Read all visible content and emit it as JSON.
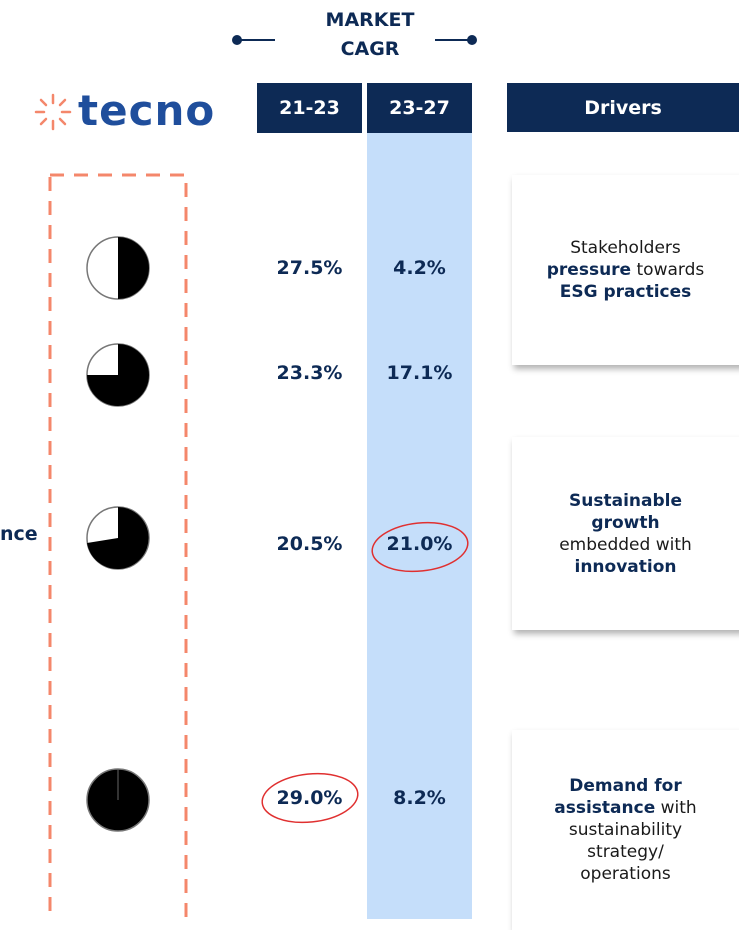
{
  "header": {
    "market_label": [
      "MARKET",
      "CAGR"
    ],
    "columns": [
      "21-23",
      "23-27"
    ],
    "drivers_label": "Drivers",
    "logo": "tecno"
  },
  "side_label": "nce",
  "rows": [
    {
      "cagr_21_23": "27.5%",
      "cagr_23_27": "4.2%"
    },
    {
      "cagr_21_23": "23.3%",
      "cagr_23_27": "17.1%"
    },
    {
      "cagr_21_23": "20.5%",
      "cagr_23_27": "21.0%"
    },
    {
      "cagr_21_23": "29.0%",
      "cagr_23_27": "8.2%"
    }
  ],
  "drivers": [
    {
      "lines": [
        [
          {
            "text": "Stakeholders",
            "bold": false
          }
        ],
        [
          {
            "text": "pressure",
            "bold": true
          },
          {
            "text": " towards",
            "bold": false
          }
        ],
        [
          {
            "text": "ESG practices",
            "bold": true
          }
        ]
      ]
    },
    {
      "lines": [
        [
          {
            "text": "Sustainable",
            "bold": true
          }
        ],
        [
          {
            "text": "growth",
            "bold": true
          }
        ],
        [
          {
            "text": "embedded with",
            "bold": false
          }
        ],
        [
          {
            "text": "innovation",
            "bold": true
          }
        ]
      ]
    },
    {
      "lines": [
        [
          {
            "text": "Demand for",
            "bold": true
          }
        ],
        [
          {
            "text": "assistance",
            "bold": true
          },
          {
            "text": " with",
            "bold": false
          }
        ],
        [
          {
            "text": "sustainability",
            "bold": false
          }
        ],
        [
          {
            "text": "strategy/",
            "bold": false
          }
        ],
        [
          {
            "text": "operations",
            "bold": false
          }
        ]
      ]
    }
  ]
}
